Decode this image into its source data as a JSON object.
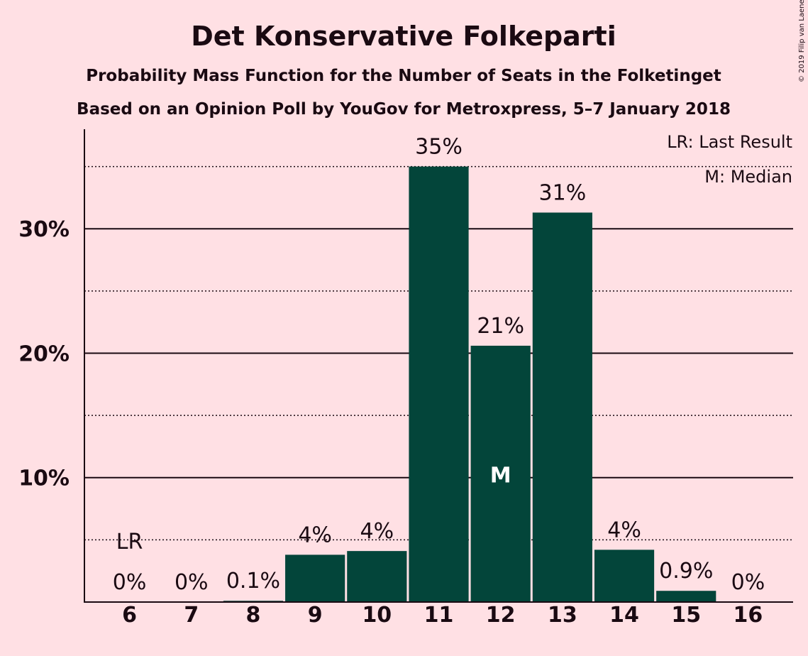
{
  "title": "Det Konservative Folkeparti",
  "subtitle": "Probability Mass Function for the Number of Seats in the Folketinget",
  "subtitle2": "Based on an Opinion Poll by YouGov for Metroxpress, 5–7 January 2018",
  "legend": {
    "last_result": "LR: Last Result",
    "median": "M: Median"
  },
  "copyright": "© 2019 Filip van Laenen",
  "colors": {
    "background": "#ffe0e4",
    "bar": "#03453a",
    "text": "#1a0a12"
  },
  "chart_data": {
    "type": "bar",
    "categories": [
      "6",
      "7",
      "8",
      "9",
      "10",
      "11",
      "12",
      "13",
      "14",
      "15",
      "16"
    ],
    "values": [
      0,
      0,
      0.1,
      3.8,
      4.1,
      35,
      20.6,
      31.3,
      4.2,
      0.9,
      0
    ],
    "value_labels": [
      "0%",
      "0%",
      "0.1%",
      "4%",
      "4%",
      "35%",
      "21%",
      "31%",
      "4%",
      "0.9%",
      "0%"
    ],
    "ylim": [
      0,
      38
    ],
    "yticks": [
      10,
      20,
      30
    ],
    "ytick_labels": [
      "10%",
      "20%",
      "30%"
    ],
    "minor_gridlines": [
      5,
      15,
      25,
      35
    ],
    "last_result": {
      "category": "6",
      "label": "LR"
    },
    "median": {
      "category": "12",
      "label": "M"
    }
  }
}
